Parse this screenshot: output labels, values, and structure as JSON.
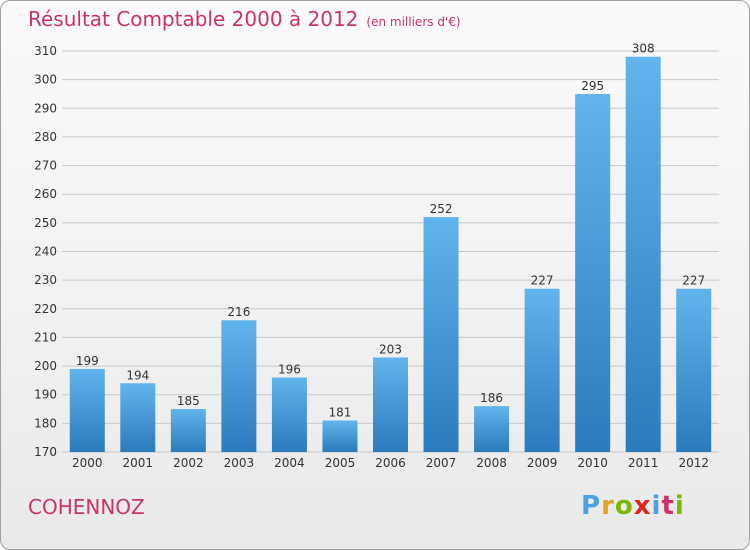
{
  "header": {
    "title": "Résultat Comptable 2000 à 2012",
    "subtitle": "(en milliers d'€)"
  },
  "footer": {
    "commune": "COHENNOZ",
    "logo": "Proxiti",
    "logo_colors": [
      "#4aa3df",
      "#e8a020",
      "#7ab800",
      "#e2231a",
      "#4aa3df",
      "#cc3366",
      "#7ab800"
    ]
  },
  "colors": {
    "bar_light": "#62b4ec",
    "bar_dark": "#2a7bbd",
    "grid": "#c8c8c8",
    "axis_text": "#333333",
    "accent": "#cc3366"
  },
  "chart_data": {
    "type": "bar",
    "title": "Résultat Comptable 2000 à 2012",
    "xlabel": "",
    "ylabel": "",
    "categories": [
      "2000",
      "2001",
      "2002",
      "2003",
      "2004",
      "2005",
      "2006",
      "2007",
      "2008",
      "2009",
      "2010",
      "2011",
      "2012"
    ],
    "values": [
      199,
      194,
      185,
      216,
      196,
      181,
      203,
      252,
      186,
      227,
      295,
      308,
      227
    ],
    "ylim": [
      170,
      310
    ],
    "yticks": [
      170,
      180,
      190,
      200,
      210,
      220,
      230,
      240,
      250,
      260,
      270,
      280,
      290,
      300,
      310
    ],
    "grid": true
  }
}
